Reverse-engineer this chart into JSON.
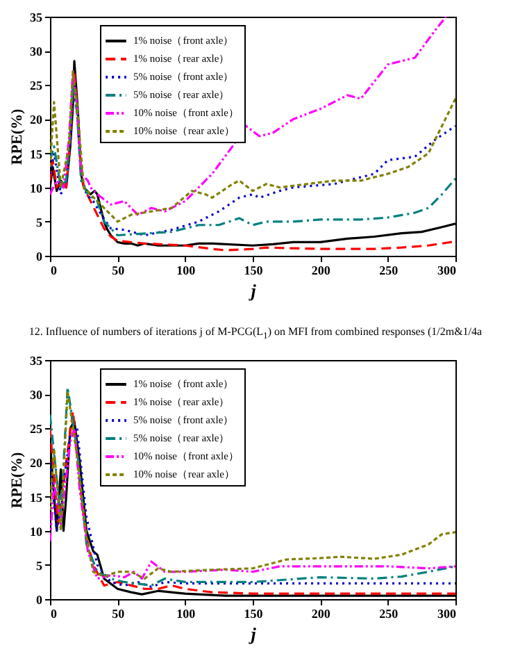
{
  "chart_data": [
    {
      "type": "line",
      "xlabel": "j",
      "ylabel": "RPE(%)",
      "xlim": [
        0,
        300
      ],
      "ylim": [
        0,
        35
      ],
      "xticks": [
        0,
        50,
        100,
        150,
        200,
        250,
        300
      ],
      "yticks": [
        0,
        5,
        10,
        15,
        20,
        25,
        30,
        35
      ],
      "legend": "top left",
      "grid": false,
      "marker": "none",
      "annotations": [
        "12. Influence of numbers of iterations j of M-PCG(L$_{1}$) on MFI from combined responses (1/2m&1/4a"
      ],
      "series": [
        {
          "name": "1% noise（front axle）",
          "color": "#000000",
          "line_style": "solid",
          "x": [
            0,
            2,
            5,
            8,
            12,
            15,
            17,
            18,
            20,
            21,
            23,
            25,
            30,
            33,
            35,
            40,
            42,
            45,
            50,
            55,
            60,
            65,
            70,
            80,
            100,
            110,
            120,
            150,
            165,
            180,
            200,
            220,
            240,
            260,
            275,
            290,
            300
          ],
          "values": [
            10,
            13,
            9.5,
            11,
            10,
            16,
            22,
            28.5,
            23,
            20,
            12,
            10,
            9,
            9.5,
            9,
            5,
            4,
            3,
            2,
            1.8,
            1.8,
            1.5,
            1.8,
            1.5,
            1.5,
            1.8,
            1.8,
            1.5,
            1.7,
            2,
            2,
            2.5,
            2.8,
            3.3,
            3.5,
            4.2,
            4.7
          ]
        },
        {
          "name": "1% noise（rear axle）",
          "color": "#ff0000",
          "line_style": "dashed",
          "x": [
            0,
            2,
            5,
            8,
            12,
            15,
            17,
            18,
            20,
            22,
            25,
            30,
            35,
            40,
            45,
            50,
            70,
            100,
            120,
            130,
            150,
            160,
            200,
            240,
            260,
            280,
            300
          ],
          "values": [
            11,
            14,
            10,
            11,
            10,
            17,
            24,
            27,
            22,
            15,
            10,
            8,
            6,
            4,
            2.8,
            2.2,
            1.8,
            1.5,
            1,
            0.8,
            1,
            1.2,
            1,
            1,
            1.2,
            1.5,
            2.1
          ]
        },
        {
          "name": "5% noise（front axle）",
          "color": "#0000cc",
          "line_style": "dotted",
          "x": [
            0,
            3,
            8,
            12,
            15,
            17,
            20,
            23,
            27,
            32,
            38,
            45,
            55,
            70,
            90,
            110,
            125,
            140,
            150,
            155,
            170,
            180,
            210,
            230,
            240,
            250,
            270,
            285,
            300
          ],
          "values": [
            12,
            15,
            9,
            11,
            17,
            26,
            21,
            12,
            9,
            8,
            6,
            4,
            3.8,
            3,
            3.8,
            5,
            6.5,
            8.5,
            9,
            8.5,
            9.5,
            10,
            10.5,
            11.5,
            12,
            14,
            14.5,
            17,
            19
          ]
        },
        {
          "name": "5% noise（rear axle）",
          "color": "#008080",
          "line_style": "dashdot",
          "x": [
            0,
            3,
            8,
            12,
            15,
            17,
            20,
            23,
            28,
            35,
            40,
            50,
            65,
            90,
            110,
            125,
            140,
            150,
            160,
            180,
            200,
            230,
            250,
            270,
            280,
            290,
            300
          ],
          "values": [
            14,
            16,
            10,
            11,
            18,
            25,
            21,
            11,
            9,
            8,
            5,
            3,
            3.2,
            3.5,
            4.5,
            4.5,
            5.5,
            4.5,
            5,
            5,
            5.3,
            5.3,
            5.6,
            6.3,
            7,
            9,
            11.3
          ]
        },
        {
          "name": "10% noise（front axle）",
          "color": "#ff00ff",
          "line_style": "dashdotdot",
          "x": [
            0,
            5,
            10,
            14,
            17,
            20,
            23,
            28,
            30,
            35,
            45,
            55,
            65,
            75,
            85,
            100,
            120,
            135,
            145,
            155,
            165,
            180,
            200,
            220,
            230,
            250,
            260,
            270,
            285,
            293
          ],
          "values": [
            9,
            11,
            10,
            17,
            27,
            22,
            12,
            11,
            10,
            9,
            7.5,
            8,
            6,
            7,
            6.5,
            8,
            12,
            16,
            19,
            17.5,
            18,
            20,
            21.5,
            23.5,
            23,
            28,
            28.5,
            29,
            33,
            35
          ]
        },
        {
          "name": "10% noise（rear axle）",
          "color": "#808000",
          "line_style": "shortdash",
          "x": [
            0,
            3,
            8,
            14,
            17,
            20,
            25,
            30,
            40,
            50,
            60,
            75,
            90,
            105,
            115,
            120,
            135,
            140,
            150,
            160,
            170,
            190,
            210,
            230,
            250,
            265,
            280,
            290,
            300
          ],
          "values": [
            13,
            22.5,
            10,
            16,
            27,
            22,
            10,
            9,
            7,
            5,
            6,
            6.5,
            7,
            9.5,
            9,
            8.5,
            10.5,
            11,
            9.5,
            10.5,
            10,
            10.5,
            11,
            11,
            12,
            13,
            15,
            19,
            23
          ]
        }
      ]
    },
    {
      "type": "line",
      "xlabel": "j",
      "ylabel": "RPE(%)",
      "xlim": [
        0,
        300
      ],
      "ylim": [
        0,
        35
      ],
      "xticks": [
        0,
        50,
        100,
        150,
        200,
        250,
        300
      ],
      "yticks": [
        0,
        5,
        10,
        15,
        20,
        25,
        30,
        35
      ],
      "legend": "top left",
      "grid": false,
      "marker": "none",
      "series": [
        {
          "name": "1% noise（front axle）",
          "color": "#000000",
          "line_style": "solid",
          "x": [
            0,
            5,
            8,
            10,
            12,
            15,
            18,
            22,
            27,
            32,
            35,
            40,
            50,
            60,
            68,
            80,
            100,
            130,
            300
          ],
          "values": [
            23,
            10,
            19,
            10,
            15,
            25,
            26,
            20,
            10,
            7,
            6.5,
            3,
            1.5,
            1,
            0.7,
            1.2,
            0.8,
            0.5,
            0.5
          ]
        },
        {
          "name": "1% noise（rear axle）",
          "color": "#ff0000",
          "line_style": "dashed",
          "x": [
            0,
            6,
            12,
            17,
            22,
            27,
            32,
            40,
            50,
            60,
            70,
            80,
            90,
            100,
            120,
            150,
            300
          ],
          "values": [
            25,
            11,
            20,
            27.5,
            17,
            9,
            5,
            2,
            2.5,
            2,
            1.5,
            1.5,
            2,
            1.5,
            1,
            0.8,
            0.8
          ]
        },
        {
          "name": "5% noise（front axle）",
          "color": "#0000cc",
          "line_style": "dotted",
          "x": [
            0,
            5,
            15,
            20,
            27,
            35,
            45,
            55,
            65,
            75,
            85,
            100,
            300
          ],
          "values": [
            20,
            10,
            24,
            25,
            12,
            5,
            2.5,
            2,
            2.5,
            1.8,
            2.5,
            2.3,
            2.3
          ]
        },
        {
          "name": "5% noise（rear axle）",
          "color": "#008080",
          "line_style": "dashdot",
          "x": [
            0,
            8,
            13,
            20,
            27,
            35,
            45,
            55,
            75,
            85,
            100,
            150,
            200,
            240,
            260,
            280,
            300
          ],
          "values": [
            27,
            12,
            31,
            22,
            8,
            4,
            3,
            2.5,
            2,
            3,
            2.5,
            2.5,
            3.2,
            3,
            3.3,
            4,
            4.8
          ]
        },
        {
          "name": "10% noise（front axle）",
          "color": "#ff00ff",
          "line_style": "dashdotdot",
          "x": [
            0,
            3,
            8,
            15,
            18,
            22,
            28,
            35,
            45,
            55,
            62,
            68,
            75,
            85,
            100,
            130,
            150,
            170,
            200,
            250,
            280,
            300
          ],
          "values": [
            8.5,
            17,
            11,
            23,
            25,
            16,
            7,
            3,
            3.5,
            3.2,
            4,
            3,
            5.5,
            4,
            4,
            4.3,
            4,
            4.8,
            4.8,
            4.8,
            4.5,
            4.8
          ]
        },
        {
          "name": "10% noise（rear axle）",
          "color": "#808000",
          "line_style": "shortdash",
          "x": [
            0,
            3,
            8,
            13,
            20,
            27,
            32,
            40,
            50,
            60,
            70,
            80,
            90,
            120,
            150,
            175,
            200,
            215,
            240,
            260,
            280,
            290,
            300
          ],
          "values": [
            13,
            22,
            10,
            30.5,
            21,
            9,
            4,
            3.3,
            4,
            4,
            3,
            4.5,
            4,
            4.3,
            4.5,
            5.8,
            6,
            6.2,
            5.9,
            6.5,
            8,
            9.5,
            9.8
          ]
        }
      ]
    }
  ]
}
